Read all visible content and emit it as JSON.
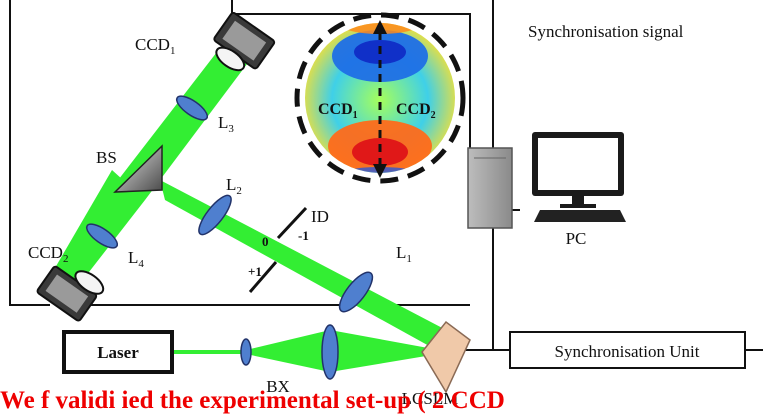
{
  "labels": {
    "ccd1": "CCD",
    "ccd1_sub": "1",
    "ccd2": "CCD",
    "ccd2_sub": "2",
    "l1": "L",
    "l1_sub": "1",
    "l2": "L",
    "l2_sub": "2",
    "l3": "L",
    "l3_sub": "3",
    "l4": "L",
    "l4_sub": "4",
    "bs": "BS",
    "id": "ID",
    "order0": "0",
    "order_minus1": "-1",
    "order_plus1": "+1",
    "bx": "BX",
    "lcslm": "LCSLM",
    "laser": "Laser",
    "pc": "PC",
    "sync_signal": "Synchronisation signal",
    "sync_unit": "Synchronisation Unit",
    "inset_ccd1": "CCD",
    "inset_ccd1_sub": "1",
    "inset_ccd2": "CCD",
    "inset_ccd2_sub": "2"
  },
  "caption_red": "We f   validi ied   the  experimental   set-up  ( 2 CCD",
  "colors": {
    "beam": "#33ee33",
    "lens": "#4f7fcf",
    "lcslm": "#f0c9a9",
    "caption": "#ee0000"
  }
}
